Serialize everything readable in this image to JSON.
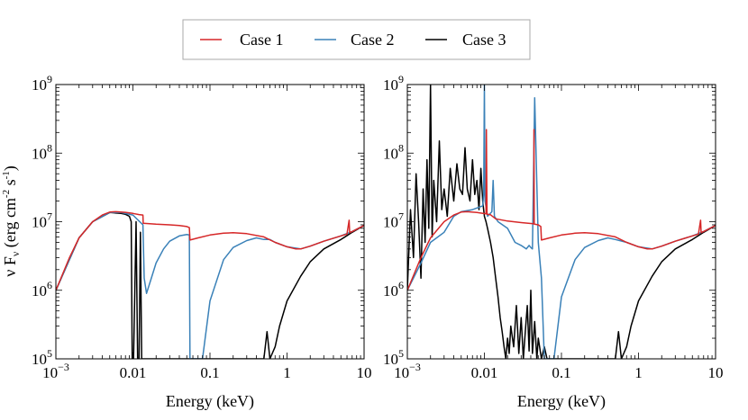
{
  "chart_data": [
    {
      "type": "line",
      "panel": "left",
      "xlabel": "Energy (keV)",
      "ylabel": "ν F_ν (erg cm^-2 s^-1)",
      "xscale": "log",
      "yscale": "log",
      "xlim": [
        0.001,
        10
      ],
      "ylim": [
        100000,
        1000000000
      ],
      "xticks": [
        "10^-3",
        "0.01",
        "0.1",
        "1",
        "10"
      ],
      "yticks": [
        "10^5",
        "10^6",
        "10^7",
        "10^8",
        "10^9"
      ],
      "series": [
        {
          "name": "Case 1",
          "color": "#d62728",
          "x": [
            0.001,
            0.0015,
            0.002,
            0.003,
            0.004,
            0.005,
            0.006,
            0.008,
            0.01,
            0.012,
            0.0135,
            0.0136,
            0.02,
            0.03,
            0.04,
            0.05,
            0.054,
            0.055,
            0.07,
            0.1,
            0.15,
            0.2,
            0.3,
            0.5,
            0.7,
            1.0,
            1.3,
            1.5,
            2.0,
            3.0,
            5.0,
            6.0,
            6.4,
            6.5,
            6.6,
            7.0,
            10.0
          ],
          "y": [
            1000000,
            3000000,
            5800000,
            10000000,
            12500000,
            13800000,
            14000000,
            13700000,
            13200000,
            12700000,
            12500000,
            9500000,
            9200000,
            9000000,
            8800000,
            8500000,
            8200000,
            5400000,
            5800000,
            6400000,
            6800000,
            6900000,
            6700000,
            6000000,
            5000000,
            4300000,
            4000000,
            4000000,
            4400000,
            5200000,
            6200000,
            6600000,
            10500000,
            6900000,
            7000000,
            7200000,
            8800000
          ]
        },
        {
          "name": "Case 2",
          "color": "#3a81b8",
          "x": [
            0.001,
            0.002,
            0.003,
            0.005,
            0.007,
            0.01,
            0.0135,
            0.014,
            0.015,
            0.017,
            0.02,
            0.025,
            0.03,
            0.04,
            0.05,
            0.054,
            0.055,
            0.08,
            0.1,
            0.15,
            0.2,
            0.3,
            0.4,
            0.5,
            0.6,
            0.7,
            1.0,
            1.5,
            2.0,
            3.0,
            5.0,
            7.0,
            10.0
          ],
          "y": [
            1000000,
            5800000,
            10000000,
            13600000,
            13600000,
            12500000,
            9000000,
            1500000,
            900000,
            1400000,
            2500000,
            4000000,
            5200000,
            6200000,
            6500000,
            6400000,
            100000,
            100000,
            700000,
            2800000,
            4200000,
            5300000,
            5800000,
            5500000,
            5500000,
            5000000,
            4300000,
            4000000,
            4400000,
            5200000,
            6200000,
            7200000,
            8800000
          ]
        },
        {
          "name": "Case 3",
          "color": "#000000",
          "x": [
            0.001,
            0.002,
            0.003,
            0.005,
            0.007,
            0.008,
            0.009,
            0.0095,
            0.0098,
            0.0102,
            0.011,
            0.0115,
            0.012,
            0.0125,
            0.013,
            0.5,
            0.55,
            0.6,
            0.7,
            0.8,
            1.0,
            1.5,
            2.0,
            3.0,
            5.0,
            7.0,
            10.0
          ],
          "y": [
            1000000,
            5800000,
            10000000,
            13600000,
            13200000,
            12800000,
            12000000,
            10000000,
            100000,
            100000,
            10000000,
            100000,
            100000,
            7000000,
            100000,
            100000,
            250000,
            100000,
            150000,
            300000,
            700000,
            1600000,
            2600000,
            4000000,
            5500000,
            7000000,
            8800000
          ]
        }
      ]
    },
    {
      "type": "line",
      "panel": "right",
      "xlabel": "Energy (keV)",
      "ylabel": "",
      "xscale": "log",
      "yscale": "log",
      "xlim": [
        0.001,
        10
      ],
      "ylim": [
        100000,
        1000000000
      ],
      "xticks": [
        "10^-3",
        "0.01",
        "0.1",
        "1",
        "10"
      ],
      "yticks": [
        "10^5",
        "10^6",
        "10^7",
        "10^8",
        "10^9"
      ],
      "series": [
        {
          "name": "Case 1",
          "color": "#d62728",
          "x": [
            0.001,
            0.0015,
            0.002,
            0.003,
            0.004,
            0.005,
            0.006,
            0.008,
            0.0105,
            0.0106,
            0.0108,
            0.012,
            0.014,
            0.02,
            0.03,
            0.04,
            0.0439,
            0.044,
            0.0443,
            0.045,
            0.05,
            0.054,
            0.055,
            0.07,
            0.1,
            0.15,
            0.2,
            0.3,
            0.5,
            0.7,
            1.0,
            1.3,
            1.5,
            2.0,
            3.0,
            5.0,
            6.0,
            6.4,
            6.5,
            6.6,
            7.0,
            10.0
          ],
          "y": [
            1000000,
            3000000,
            5800000,
            10000000,
            12500000,
            13800000,
            14000000,
            13600000,
            13000000,
            220000000,
            12800000,
            12600000,
            11000000,
            10200000,
            9700000,
            9400000,
            9300000,
            220000000,
            9200000,
            9200000,
            9000000,
            8500000,
            5400000,
            5800000,
            6400000,
            6800000,
            6900000,
            6700000,
            6000000,
            5000000,
            4300000,
            4000000,
            4000000,
            4400000,
            5200000,
            6200000,
            6600000,
            10500000,
            6900000,
            7000000,
            7200000,
            8800000
          ]
        },
        {
          "name": "Case 2",
          "color": "#3a81b8",
          "x": [
            0.001,
            0.0015,
            0.002,
            0.003,
            0.004,
            0.005,
            0.007,
            0.0095,
            0.0098,
            0.01,
            0.0102,
            0.011,
            0.0125,
            0.013,
            0.0135,
            0.015,
            0.02,
            0.025,
            0.03,
            0.035,
            0.038,
            0.04,
            0.042,
            0.045,
            0.05,
            0.055,
            0.06,
            0.08,
            0.1,
            0.15,
            0.2,
            0.3,
            0.4,
            0.5,
            0.7,
            1.0,
            1.5,
            2.0,
            3.0,
            5.0,
            7.0,
            10.0
          ],
          "y": [
            1000000,
            2500000,
            5000000,
            7000000,
            12000000,
            14000000,
            15000000,
            17000000,
            25000000,
            1000000000,
            20000000,
            12000000,
            14000000,
            40000000,
            12000000,
            10000000,
            8000000,
            5000000,
            4500000,
            4000000,
            4500000,
            4200000,
            4000000,
            640000000,
            5000000,
            1500000,
            100000,
            100000,
            800000,
            2800000,
            4200000,
            5300000,
            5800000,
            5500000,
            5000000,
            4300000,
            4000000,
            4400000,
            5200000,
            6200000,
            7200000,
            8800000
          ]
        },
        {
          "name": "Case 3",
          "color": "#000000",
          "x": [
            0.001,
            0.0011,
            0.0012,
            0.0013,
            0.0014,
            0.0015,
            0.0016,
            0.0017,
            0.0018,
            0.0019,
            0.002,
            0.0021,
            0.0022,
            0.0024,
            0.0026,
            0.0028,
            0.003,
            0.0033,
            0.0036,
            0.004,
            0.0044,
            0.0048,
            0.0052,
            0.0056,
            0.006,
            0.0065,
            0.007,
            0.0075,
            0.008,
            0.0085,
            0.009,
            0.0095,
            0.01,
            0.0105,
            0.011,
            0.012,
            0.013,
            0.014,
            0.015,
            0.016,
            0.017,
            0.018,
            0.019,
            0.02,
            0.021,
            0.022,
            0.024,
            0.026,
            0.028,
            0.03,
            0.032,
            0.034,
            0.036,
            0.038,
            0.04,
            0.042,
            0.045,
            0.048,
            0.05,
            0.055,
            0.06,
            0.065,
            0.07,
            0.5,
            0.55,
            0.6,
            0.7,
            0.8,
            1.0,
            1.5,
            2.0,
            3.0,
            5.0,
            7.0,
            10.0
          ],
          "y": [
            1000000,
            15000000,
            3000000,
            50000000,
            10000000,
            1500000,
            30000000,
            5000000,
            80000000,
            8000000,
            1000000000,
            6000000,
            40000000,
            10000000,
            150000000,
            15000000,
            30000000,
            12000000,
            60000000,
            20000000,
            70000000,
            30000000,
            25000000,
            120000000,
            30000000,
            20000000,
            80000000,
            25000000,
            40000000,
            15000000,
            60000000,
            20000000,
            12000000,
            10000000,
            8000000,
            5000000,
            3000000,
            1500000,
            800000,
            400000,
            250000,
            150000,
            100000,
            200000,
            120000,
            300000,
            150000,
            600000,
            120000,
            400000,
            100000,
            250000,
            600000,
            130000,
            1000000,
            120000,
            350000,
            100000,
            200000,
            100000,
            150000,
            100000,
            100000,
            100000,
            250000,
            100000,
            150000,
            300000,
            700000,
            1600000,
            2600000,
            4000000,
            5500000,
            7000000,
            8800000
          ]
        }
      ]
    }
  ],
  "legend": {
    "position": "top-center",
    "entries": [
      {
        "label": "Case 1",
        "color": "#d62728"
      },
      {
        "label": "Case 2",
        "color": "#3a81b8"
      },
      {
        "label": "Case 3",
        "color": "#000000"
      }
    ]
  }
}
